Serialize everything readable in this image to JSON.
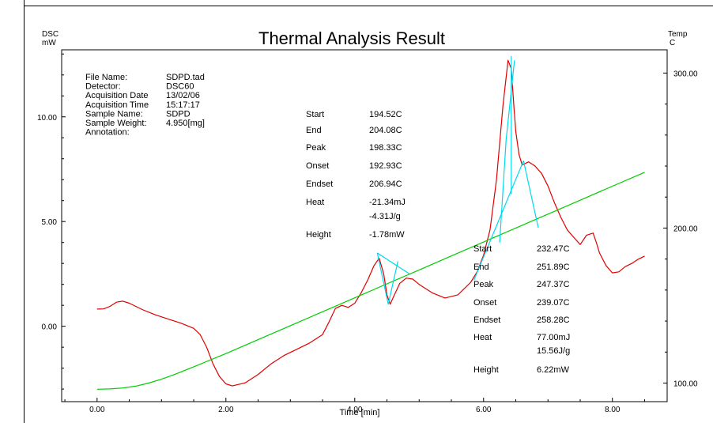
{
  "chart_data": {
    "type": "line",
    "title": "Thermal Analysis Result",
    "xlabel": "Time [min]",
    "ylabel_left_top": "DSC",
    "ylabel_left_bottom": "mW",
    "ylabel_right_top": "Temp",
    "ylabel_right_bottom": "C",
    "xlim": [
      -0.55,
      8.85
    ],
    "ylim_left": [
      -3.6,
      13.2
    ],
    "ylim_right": [
      88,
      315
    ],
    "x_ticks": [
      0,
      2,
      4,
      6,
      8
    ],
    "x_tick_labels": [
      "0.00",
      "2.00",
      "4.00",
      "6.00",
      "8.00"
    ],
    "y_left_ticks": [
      0,
      5,
      10
    ],
    "y_left_tick_labels": [
      "0.00",
      "5.00",
      "10.00"
    ],
    "y_right_ticks": [
      100,
      200,
      300
    ],
    "y_right_tick_labels": [
      "100.00",
      "200.00",
      "300.00"
    ],
    "grid": false,
    "colors": {
      "dsc": "#e00000",
      "temp": "#00cc00",
      "baseline": "#00d8ee"
    },
    "series": [
      {
        "axis": "left",
        "color": "#e00000",
        "x": [
          0.0,
          0.1,
          0.2,
          0.3,
          0.4,
          0.5,
          0.7,
          0.9,
          1.1,
          1.3,
          1.5,
          1.6,
          1.7,
          1.8,
          1.9,
          2.0,
          2.1,
          2.3,
          2.5,
          2.7,
          2.9,
          3.1,
          3.3,
          3.5,
          3.6,
          3.7,
          3.8,
          3.9,
          4.0,
          4.1,
          4.2,
          4.3,
          4.38,
          4.45,
          4.5,
          4.55,
          4.6,
          4.7,
          4.8,
          4.9,
          5.0,
          5.2,
          5.4,
          5.6,
          5.8,
          5.9,
          6.0,
          6.1,
          6.2,
          6.3,
          6.38,
          6.43,
          6.47,
          6.5,
          6.55,
          6.6,
          6.7,
          6.8,
          6.9,
          7.0,
          7.1,
          7.2,
          7.3,
          7.4,
          7.5,
          7.6,
          7.7,
          7.75,
          7.8,
          7.9,
          8.0,
          8.1,
          8.2,
          8.3,
          8.4,
          8.5
        ],
        "y": [
          0.82,
          0.83,
          0.95,
          1.15,
          1.2,
          1.1,
          0.8,
          0.55,
          0.35,
          0.15,
          -0.1,
          -0.4,
          -1.0,
          -1.8,
          -2.4,
          -2.75,
          -2.85,
          -2.7,
          -2.3,
          -1.8,
          -1.4,
          -1.1,
          -0.8,
          -0.4,
          0.2,
          0.85,
          1.0,
          0.9,
          1.1,
          1.6,
          2.2,
          2.9,
          3.25,
          2.5,
          1.5,
          1.05,
          1.4,
          2.05,
          2.3,
          2.25,
          2.0,
          1.6,
          1.35,
          1.5,
          2.1,
          2.6,
          3.4,
          4.6,
          7.0,
          10.5,
          12.7,
          12.3,
          10.5,
          9.3,
          8.2,
          7.7,
          7.85,
          7.65,
          7.3,
          6.7,
          5.9,
          5.2,
          4.6,
          4.25,
          3.9,
          4.35,
          4.45,
          4.0,
          3.5,
          2.9,
          2.55,
          2.6,
          2.85,
          3.0,
          3.2,
          3.35
        ]
      },
      {
        "axis": "right",
        "color": "#00cc00",
        "x": [
          0.0,
          0.2,
          0.4,
          0.6,
          0.8,
          1.0,
          1.2,
          1.5,
          2.0,
          2.5,
          3.0,
          3.5,
          4.0,
          4.5,
          5.0,
          5.5,
          6.0,
          6.5,
          7.0,
          7.5,
          8.0,
          8.5
        ],
        "y": [
          96,
          96.2,
          96.8,
          98,
          100,
          102.5,
          105.5,
          110.5,
          119,
          128,
          137,
          146,
          155,
          164,
          173,
          182,
          191,
          200,
          209,
          218,
          227,
          236
        ]
      }
    ],
    "baselines": [
      [
        [
          4.35,
          3.5
        ],
        [
          4.85,
          2.5
        ]
      ],
      [
        [
          4.35,
          3.5
        ],
        [
          4.52,
          1.05
        ]
      ],
      [
        [
          4.52,
          1.05
        ],
        [
          4.67,
          3.1
        ]
      ],
      [
        [
          5.85,
          2.2
        ],
        [
          6.62,
          7.9
        ]
      ],
      [
        [
          6.62,
          7.9
        ],
        [
          6.85,
          4.7
        ]
      ],
      [
        [
          6.43,
          12.9
        ],
        [
          6.43,
          6.3
        ]
      ],
      [
        [
          6.48,
          12.7
        ],
        [
          6.35,
          8.9
        ]
      ],
      [
        [
          6.35,
          8.9
        ],
        [
          6.25,
          4.0
        ]
      ]
    ],
    "file_info": {
      "labels": [
        "File Name:",
        "Detector:",
        "Acquisition Date",
        "Acquisition Time",
        "Sample Name:",
        "Sample Weight:",
        "Annotation:"
      ],
      "values": [
        "SDPD.tad",
        "DSC60",
        "13/02/06",
        "15:17:17",
        "SDPD",
        "4.950[mg]",
        ""
      ]
    },
    "peak1": {
      "labels": [
        "Start",
        "End",
        "Peak",
        "Onset",
        "Endset",
        "Heat",
        "",
        "Height"
      ],
      "values": [
        "194.52C",
        "204.08C",
        "198.33C",
        "192.93C",
        "206.94C",
        "-21.34mJ",
        "-4.31J/g",
        "-1.78mW"
      ]
    },
    "peak2": {
      "labels": [
        "Start",
        "End",
        "Peak",
        "Onset",
        "Endset",
        "Heat",
        "",
        "Height"
      ],
      "values": [
        "232.47C",
        "251.89C",
        "247.37C",
        "239.07C",
        "258.28C",
        "77.00mJ",
        "15.56J/g",
        "6.22mW"
      ]
    }
  }
}
